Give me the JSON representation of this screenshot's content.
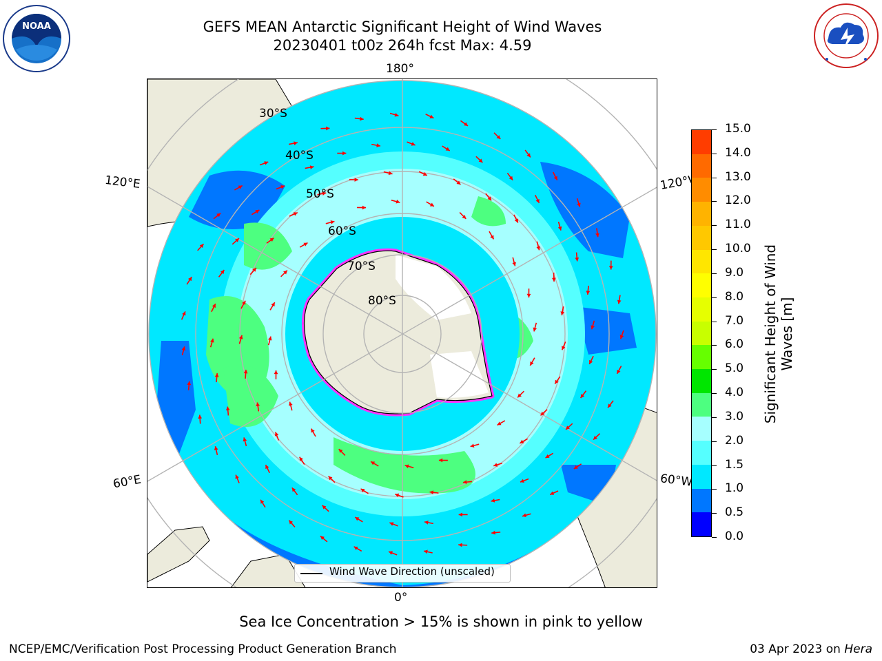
{
  "title": {
    "line1": "GEFS MEAN Antarctic Significant Height of Wind Waves",
    "line2": "20230401 t00z 264h fcst   Max: 4.59"
  },
  "logos": {
    "left": {
      "name": "NOAA",
      "text": "NOAA",
      "ring_text": "NATIONAL OCEANIC AND ATMOSPHERIC ADMINISTRATION · U.S. DEPARTMENT OF COMMERCE"
    },
    "right": {
      "name": "National Weather Service",
      "ring_text": "NATIONAL WEATHER SERVICE"
    }
  },
  "map": {
    "projection": "south polar stereographic",
    "longitude_labels": {
      "top": "180°",
      "bottom": "0°",
      "left_upper": "120°E",
      "left_lower": "60°E",
      "right_upper": "120°W",
      "right_lower": "60°W"
    },
    "latitude_labels": [
      "30°S",
      "40°S",
      "50°S",
      "60°S",
      "70°S",
      "80°S"
    ],
    "legend": "Wind Wave Direction (unscaled)",
    "colors": {
      "land": "#ecebdc",
      "arrows": "#ff0000",
      "sea_ice_edge": "#ff33ff"
    }
  },
  "colorbar": {
    "label": "Significant Height of Wind Waves [m]",
    "label_line1": "Significant Height of Wind",
    "label_line2": "Waves [m]",
    "ticks": [
      "0.0",
      "0.5",
      "1.0",
      "1.5",
      "2.0",
      "3.0",
      "4.0",
      "5.0",
      "6.0",
      "7.0",
      "8.0",
      "9.0",
      "10.0",
      "11.0",
      "12.0",
      "13.0",
      "14.0",
      "15.0"
    ],
    "colors": [
      "#0000ff",
      "#0077ff",
      "#00e8ff",
      "#55ffff",
      "#a6ffff",
      "#4dff80",
      "#00e600",
      "#66ff00",
      "#c8ff00",
      "#e6ff00",
      "#ffff00",
      "#ffe600",
      "#ffc800",
      "#ffb300",
      "#ff8c00",
      "#ff6a00",
      "#ff3d00"
    ]
  },
  "note": "Sea Ice Concentration > 15% is shown in pink to yellow",
  "footer": {
    "left": "NCEP/EMC/Verification Post Processing Product Generation Branch",
    "date": "03 Apr 2023 on ",
    "system": "Hera"
  }
}
